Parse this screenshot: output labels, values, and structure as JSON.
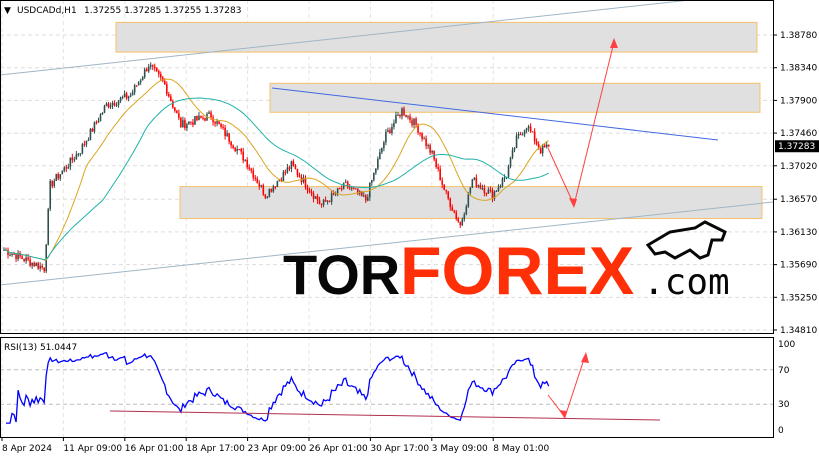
{
  "header": {
    "symbol": "USDCADd,H1",
    "ohlc": "1.37255 1.37285 1.37255 1.37283"
  },
  "logo": {
    "part1": "TOR",
    "part2": "FOREX",
    "part3": ".com",
    "icon": "bull-icon"
  },
  "colors": {
    "bull": "#2f4f4f",
    "bear": "#ff0000",
    "ma_fast": "#daa520",
    "ma_slow": "#20b2aa",
    "zone_border": "#f5c06a",
    "zone_fill": "#e0e0e0",
    "trend_blue": "#4169e1",
    "channel": "#9fb6c6",
    "arrow": "#ff4040",
    "rsi": "#0000ff",
    "logo_red": "#ff2a00"
  },
  "chart_data": {
    "type": "candlestick",
    "ylim": [
      1.3481,
      1.3915
    ],
    "price_ticks": [
      "1.38780",
      "1.38340",
      "1.37900",
      "1.37460",
      "1.37020",
      "1.36570",
      "1.36130",
      "1.35690",
      "1.35250",
      "1.34810"
    ],
    "last_price": "1.37283",
    "x_ticks": [
      "8 Apr 2024",
      "11 Apr 09:00",
      "16 Apr 01:00",
      "18 Apr 17:00",
      "23 Apr 09:00",
      "26 Apr 01:00",
      "30 Apr 17:00",
      "3 May 09:00",
      "8 May 01:00"
    ],
    "price_path": [
      [
        0,
        1.3589
      ],
      [
        20,
        1.3564
      ],
      [
        23,
        1.3676
      ],
      [
        38,
        1.3723
      ],
      [
        51,
        1.3784
      ],
      [
        63,
        1.3797
      ],
      [
        72,
        1.3838
      ],
      [
        80,
        1.3811
      ],
      [
        88,
        1.3757
      ],
      [
        103,
        1.377
      ],
      [
        120,
        1.371
      ],
      [
        130,
        1.3663
      ],
      [
        143,
        1.3703
      ],
      [
        158,
        1.3649
      ],
      [
        170,
        1.3676
      ],
      [
        180,
        1.3656
      ],
      [
        190,
        1.3743
      ],
      [
        198,
        1.3777
      ],
      [
        205,
        1.3757
      ],
      [
        213,
        1.3717
      ],
      [
        220,
        1.3663
      ],
      [
        227,
        1.3622
      ],
      [
        233,
        1.3683
      ],
      [
        243,
        1.3663
      ],
      [
        250,
        1.369
      ],
      [
        255,
        1.3737
      ],
      [
        260,
        1.3757
      ],
      [
        267,
        1.3723
      ],
      [
        271,
        1.37283
      ]
    ],
    "zones": [
      [
        1.3895,
        1.3855
      ],
      [
        1.3813,
        1.3774
      ],
      [
        1.3674,
        1.3631
      ]
    ],
    "indicator": {
      "label": "RSI(13) 51.0447",
      "ylim": [
        0,
        100
      ],
      "ticks": [
        "100",
        "70",
        "30",
        "0"
      ]
    }
  }
}
